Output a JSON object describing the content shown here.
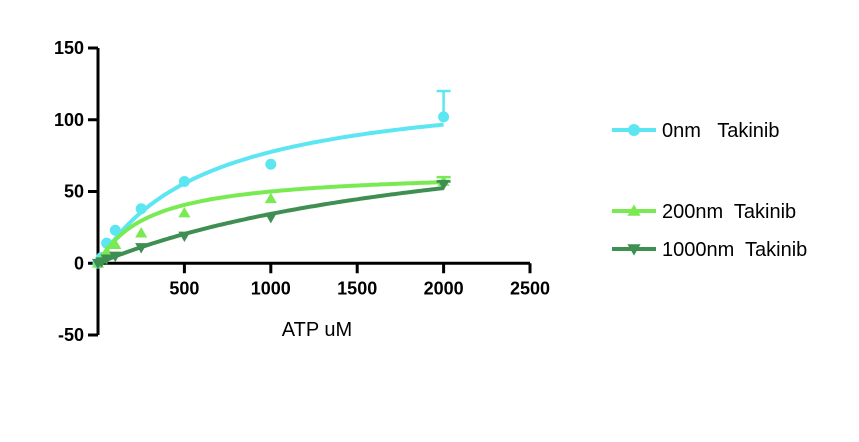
{
  "chart_data": {
    "type": "line",
    "title": "",
    "xlabel": "ATP uM",
    "ylabel": "",
    "xlim": [
      0,
      2500
    ],
    "ylim": [
      -50,
      150
    ],
    "x_ticks": [
      500,
      1000,
      1500,
      2000,
      2500
    ],
    "y_ticks": [
      -50,
      0,
      50,
      100,
      150
    ],
    "grid": false,
    "legend_position": "right",
    "series": [
      {
        "name": "0nm   Takinib",
        "color": "#5ce6f2",
        "marker": "circle",
        "x": [
          0,
          20,
          50,
          100,
          250,
          500,
          1000,
          2000
        ],
        "y": [
          0,
          4,
          14,
          23,
          38,
          57,
          69,
          102
        ],
        "error": [
          0,
          0,
          0,
          0,
          0,
          0,
          0,
          18
        ],
        "fit_vmax": 128,
        "fit_km": 650
      },
      {
        "name": "200nm  Takinib",
        "color": "#79ea52",
        "marker": "triangle-up",
        "x": [
          0,
          20,
          50,
          100,
          250,
          500,
          1000,
          2000
        ],
        "y": [
          0,
          3,
          8,
          13,
          21,
          35,
          45,
          57
        ],
        "error": [
          0,
          0,
          0,
          0,
          0,
          0,
          0,
          3
        ],
        "fit_vmax": 65,
        "fit_km": 300
      },
      {
        "name": "1000nm  Takinib",
        "color": "#3f8f53",
        "marker": "triangle-down",
        "x": [
          0,
          20,
          50,
          100,
          250,
          500,
          1000,
          2000
        ],
        "y": [
          0,
          1,
          3,
          5,
          11,
          19,
          32,
          55
        ],
        "error": [
          0,
          0,
          0,
          0,
          0,
          0,
          0,
          2
        ],
        "fit_vmax": 110,
        "fit_km": 2200
      }
    ]
  }
}
